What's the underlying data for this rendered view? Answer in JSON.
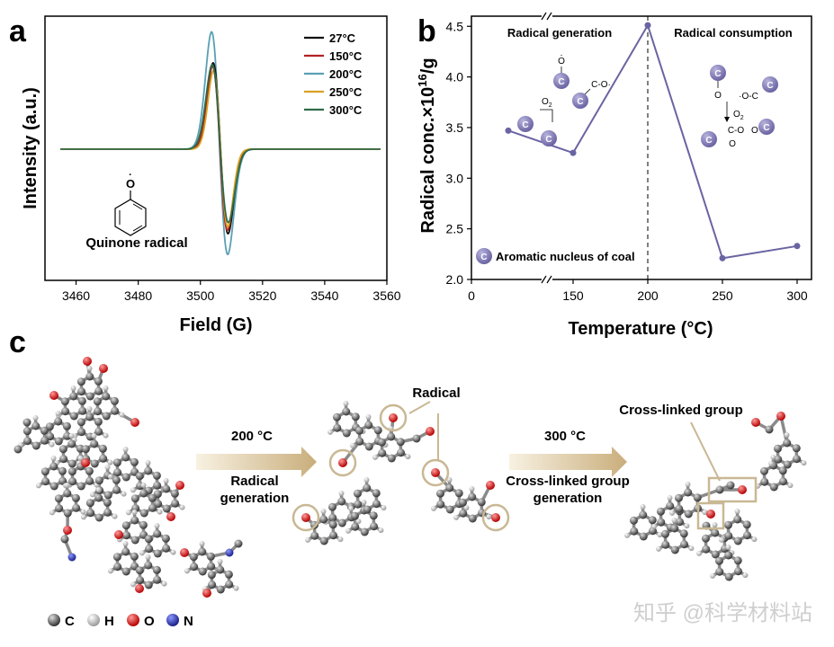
{
  "panel_labels": {
    "a": "a",
    "b": "b",
    "c": "c"
  },
  "chart_data": [
    {
      "type": "line",
      "panel": "a",
      "title": "",
      "xlabel": "Field (G)",
      "ylabel": "Intensity (a.u.)",
      "xlim": [
        3450,
        3560
      ],
      "x_ticks": [
        "3460",
        "3480",
        "3500",
        "3520",
        "3540",
        "3560"
      ],
      "baseline_intensity": 0,
      "series": [
        {
          "name": "27°C",
          "color": "#111111",
          "center": 3506.5,
          "width": 2.4,
          "amplitude": 1.0,
          "neg_amplitude": 0.98
        },
        {
          "name": "150°C",
          "color": "#b22222",
          "center": 3506.3,
          "width": 2.4,
          "amplitude": 0.96,
          "neg_amplitude": 0.94
        },
        {
          "name": "200°C",
          "color": "#5aa0b4",
          "center": 3506.2,
          "width": 2.6,
          "amplitude": 1.36,
          "neg_amplitude": 1.22
        },
        {
          "name": "250°C",
          "color": "#d9a021",
          "center": 3506.5,
          "width": 2.3,
          "amplitude": 0.91,
          "neg_amplitude": 0.9
        },
        {
          "name": "300°C",
          "color": "#2e6b48",
          "center": 3506.4,
          "width": 2.6,
          "amplitude": 0.98,
          "neg_amplitude": 0.85
        }
      ],
      "inset": {
        "label": "Quinone radical",
        "dot": "·",
        "atom": "O"
      }
    },
    {
      "type": "line",
      "panel": "b",
      "xlabel": "Temperature (°C)",
      "ylabel": "Radical conc.×10¹⁶/g",
      "ylabel_main": "Radical conc.×10",
      "ylabel_exp": "16",
      "ylabel_tail": "/g",
      "ylim": [
        2.0,
        4.6
      ],
      "y_ticks": [
        "2.0",
        "2.5",
        "3.0",
        "3.5",
        "4.0",
        "4.5"
      ],
      "x_ticks": [
        "0",
        "150",
        "200",
        "250",
        "300"
      ],
      "axis_break": true,
      "series": [
        {
          "name": "Radical concentration",
          "color": "#6a64a2",
          "points": [
            {
              "x": 27,
              "y": 3.47
            },
            {
              "x": 150,
              "y": 3.25
            },
            {
              "x": 200,
              "y": 4.51
            },
            {
              "x": 250,
              "y": 2.21
            },
            {
              "x": 300,
              "y": 2.33
            }
          ]
        }
      ],
      "divider_at": 200,
      "annotations": {
        "left_title": "Radical generation",
        "right_title": "Radical consumption",
        "legend_text": "Aromatic nucleus of coal",
        "ring_letter": "C",
        "o2": "O",
        "o2_sub": "2",
        "o_dot": "O",
        "co_dot": "C-O·",
        "oc_dot": "·O-C",
        "c_o_o": "C-O"
      }
    }
  ],
  "panel_c": {
    "step1_temp": "200 °C",
    "step1_line1": "Radical",
    "step1_line2": "generation",
    "step2_temp": "300 °C",
    "step2_line1": "Cross-linked group",
    "step2_line2": "generation",
    "radical_label": "Radical",
    "crosslink_label": "Cross-linked group",
    "atom_legend": [
      "C",
      "H",
      "O",
      "N"
    ],
    "atom_colors": [
      "#555555",
      "#cfcfcf",
      "#d42020",
      "#2a3aa8"
    ],
    "watermark": "知乎 @科学材料站"
  }
}
